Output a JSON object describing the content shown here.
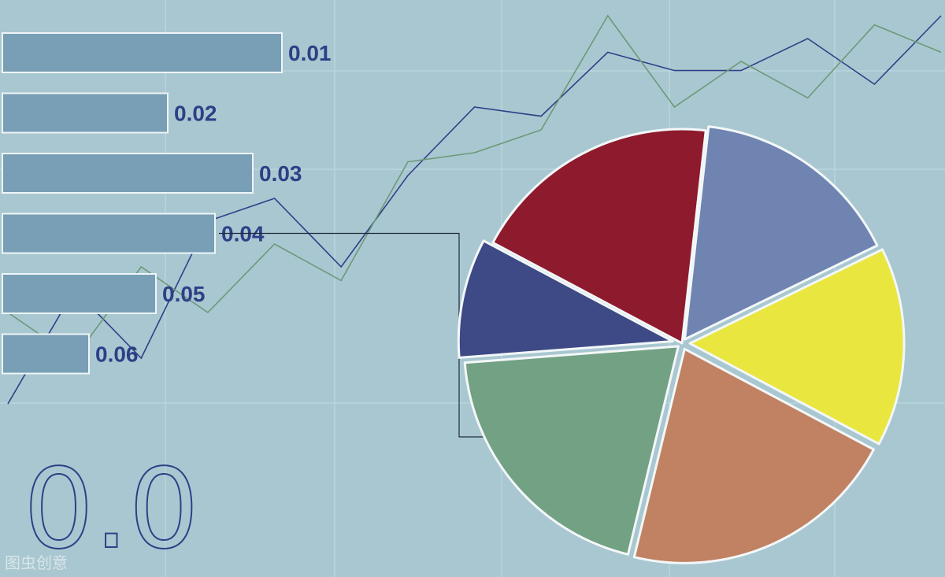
{
  "chart_data": [
    {
      "type": "bar",
      "orientation": "horizontal",
      "categories": [
        "0.01",
        "0.02",
        "0.03",
        "0.04",
        "0.05",
        "0.06"
      ],
      "values": [
        355,
        210,
        318,
        270,
        195,
        110
      ],
      "bar_color": "#789fb5",
      "label_color": "#2f3f86"
    },
    {
      "type": "line",
      "x": [
        1,
        2,
        3,
        4,
        5,
        6,
        7,
        8,
        9,
        10,
        11,
        12,
        13,
        14,
        15
      ],
      "series": [
        {
          "values": [
            15,
            40,
            25,
            55,
            60,
            45,
            65,
            80,
            78,
            92,
            88,
            88,
            95,
            85,
            100
          ],
          "color": "#2f3f86"
        },
        {
          "values": [
            35,
            25,
            45,
            35,
            50,
            42,
            68,
            70,
            75,
            100,
            80,
            90,
            82,
            98,
            92
          ],
          "color": "#6b9a78"
        }
      ]
    },
    {
      "type": "pie",
      "slices": [
        {
          "value": 19,
          "color": "#8e1a2d"
        },
        {
          "value": 16,
          "color": "#6f84b1"
        },
        {
          "value": 15,
          "color": "#e9e640"
        },
        {
          "value": 21,
          "color": "#c08262"
        },
        {
          "value": 20,
          "color": "#73a183"
        },
        {
          "value": 9,
          "color": "#3e4a86"
        }
      ]
    }
  ],
  "decor": {
    "big_text": "0.0",
    "watermark": "图虫创意",
    "text_color": "#2f3f86"
  }
}
